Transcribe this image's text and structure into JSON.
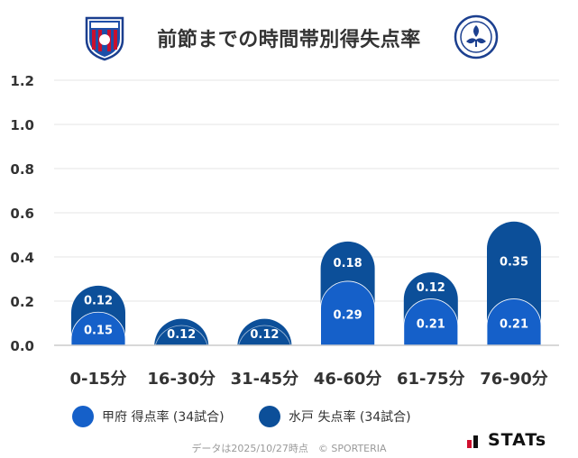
{
  "title": "前節までの時間帯別得失点率",
  "colors": {
    "scored": "#1560c9",
    "conceded": "#0c4f99",
    "grid": "#e6e6e6",
    "axis_text": "#333333",
    "bar_label": "#ffffff"
  },
  "chart_data": {
    "type": "bar",
    "title": "前節までの時間帯別得失点率",
    "categories": [
      "0-15分",
      "16-30分",
      "31-45分",
      "46-60分",
      "61-75分",
      "76-90分"
    ],
    "series": [
      {
        "name": "甲府 得点率 (34試合)",
        "values": [
          0.15,
          0.0,
          0.0,
          0.29,
          0.21,
          0.21
        ],
        "labels": [
          "0.15",
          "",
          "",
          "0.29",
          "0.21",
          "0.21"
        ]
      },
      {
        "name": "水戸 失点率 (34試合)",
        "values": [
          0.12,
          0.12,
          0.12,
          0.18,
          0.12,
          0.35
        ],
        "labels": [
          "0.12",
          "0.12",
          "0.12",
          "0.18",
          "0.12",
          "0.35"
        ]
      }
    ],
    "ylim": [
      0,
      1.2
    ],
    "yticks": [
      "0.0",
      "0.2",
      "0.4",
      "0.6",
      "0.8",
      "1.0",
      "1.2"
    ],
    "stacked": true,
    "grid": true,
    "legend": "bottom"
  },
  "legend": {
    "scored_label": "甲府 得点率 (34試合)",
    "conceded_label": "水戸 失点率 (34試合)"
  },
  "footer": {
    "note": "データは2025/10/27時点　© SPORTERIA",
    "brand": "STATs"
  }
}
